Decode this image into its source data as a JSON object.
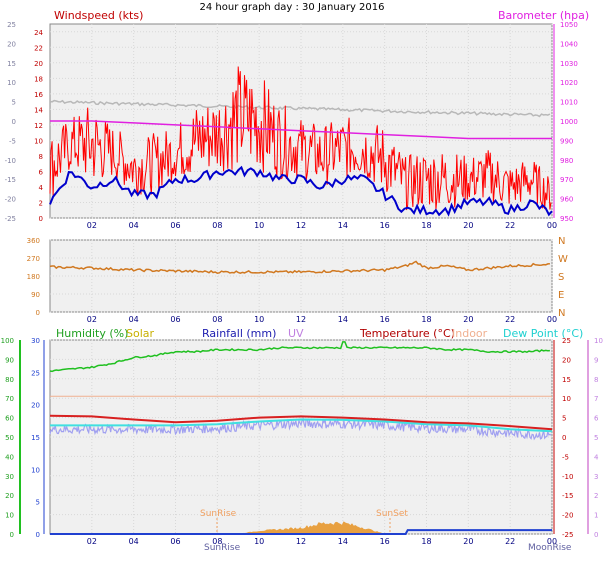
{
  "title": "24 hour graph day : 30 January 2016",
  "colors": {
    "windspeed": "#ff0000",
    "windavg": "#0000cc",
    "gust_grey": "#b8b8b8",
    "barometer": "#e020e0",
    "direction": "#d07820",
    "humidity": "#20c020",
    "solar": "#e8a040",
    "rainfall": "#2040d0",
    "temperature": "#d82020",
    "indoor": "#f0b090",
    "dewpoint": "#40e0e0",
    "uv_band": "#a0a0f0"
  },
  "chart_data": [
    {
      "type": "line",
      "name": "wind-barometer",
      "labels": {
        "windspeed": "Windspeed (kts)",
        "barometer": "Barometer (hpa)"
      },
      "x_ticks": [
        "02",
        "04",
        "06",
        "08",
        "10",
        "12",
        "14",
        "16",
        "18",
        "20",
        "22",
        "00"
      ],
      "y_left_ticks": [
        "0",
        "2",
        "4",
        "6",
        "8",
        "10",
        "12",
        "14",
        "16",
        "18",
        "20",
        "22",
        "24"
      ],
      "y_left2_ticks": [
        "-25",
        "-20",
        "-15",
        "-10",
        "-5",
        "0",
        "5",
        "10",
        "15",
        "20",
        "25"
      ],
      "y_right_ticks": [
        "950",
        "960",
        "970",
        "980",
        "990",
        "1000",
        "1010",
        "1020",
        "1030",
        "1040",
        "1050"
      ],
      "ylim_left": [
        0,
        25
      ],
      "ylim_right": [
        950,
        1050
      ],
      "series": [
        {
          "key": "wind_max",
          "x": [
            0,
            1,
            2,
            3,
            4,
            5,
            6,
            7,
            8,
            9,
            10,
            11,
            12,
            13,
            14,
            15,
            16,
            17,
            18,
            19,
            20,
            21,
            22,
            23,
            24
          ],
          "values": [
            11,
            13,
            15,
            12,
            10,
            11,
            12,
            15,
            16,
            20,
            19,
            15,
            13,
            12,
            13,
            13,
            12,
            8,
            9,
            9,
            8,
            9,
            7,
            8,
            5
          ]
        },
        {
          "key": "wind_avg",
          "x": [
            0,
            1,
            2,
            3,
            4,
            5,
            6,
            7,
            8,
            9,
            10,
            11,
            12,
            13,
            14,
            15,
            16,
            17,
            18,
            19,
            20,
            21,
            22,
            23,
            24
          ],
          "values": [
            2,
            6,
            4,
            5,
            3,
            3,
            5,
            5,
            6,
            6,
            6,
            5,
            5,
            4,
            5,
            5,
            3,
            1,
            1,
            1,
            2,
            2,
            1,
            2,
            0.5
          ]
        },
        {
          "key": "barometer",
          "x": [
            0,
            2,
            4,
            6,
            8,
            10,
            12,
            14,
            16,
            18,
            20,
            22,
            24
          ],
          "values": [
            1000,
            1000,
            999,
            998,
            997,
            996,
            995,
            994,
            993,
            992,
            991,
            991,
            991
          ]
        }
      ]
    },
    {
      "type": "line",
      "name": "wind-direction",
      "x_ticks": [
        "02",
        "04",
        "06",
        "08",
        "10",
        "12",
        "14",
        "16",
        "18",
        "20",
        "22",
        "00"
      ],
      "y_ticks": [
        "0",
        "90",
        "180",
        "270",
        "360"
      ],
      "y_dir_labels": [
        "N",
        "E",
        "S",
        "W",
        "N"
      ],
      "ylim": [
        0,
        360
      ],
      "series": [
        {
          "key": "direction",
          "x": [
            0,
            2,
            4,
            6,
            8,
            10,
            12,
            14,
            16,
            17,
            17.5,
            18,
            19,
            20,
            21,
            22,
            23,
            24
          ],
          "values": [
            225,
            220,
            210,
            205,
            200,
            200,
            200,
            205,
            210,
            230,
            250,
            220,
            230,
            210,
            220,
            230,
            235,
            240
          ]
        }
      ]
    },
    {
      "type": "line",
      "name": "temp-humidity",
      "labels": {
        "humidity": "Humidity (%)",
        "solar": "Solar",
        "rainfall": "Rainfall (mm)",
        "uv": "UV",
        "temperature": "Temperature (°C)",
        "indoor": "Indoor",
        "dewpoint": "Dew Point (°C)",
        "sunrise": "SunRise",
        "sunset": "SunSet",
        "moonrise": "MoonRise"
      },
      "x_ticks": [
        "02",
        "04",
        "06",
        "08",
        "10",
        "12",
        "14",
        "16",
        "18",
        "20",
        "22",
        "00"
      ],
      "y_humidity_ticks": [
        "0",
        "10",
        "20",
        "30",
        "40",
        "50",
        "60",
        "70",
        "80",
        "90",
        "100"
      ],
      "y_rain_ticks": [
        "0",
        "5",
        "10",
        "15",
        "20",
        "25",
        "30"
      ],
      "y_temp_ticks": [
        "-25",
        "-20",
        "-15",
        "-10",
        "-5",
        "0",
        "5",
        "10",
        "15",
        "20",
        "25"
      ],
      "y_uv_ticks": [
        "0",
        "1",
        "2",
        "3",
        "4",
        "5",
        "6",
        "7",
        "8",
        "9",
        "10"
      ],
      "ylim_humidity": [
        0,
        100
      ],
      "ylim_temp": [
        -25,
        25
      ],
      "series": [
        {
          "key": "humidity",
          "x": [
            0,
            1,
            2,
            3,
            4,
            5,
            6,
            7,
            8,
            9,
            10,
            11,
            12,
            13,
            14,
            15,
            16,
            17,
            18,
            19,
            20,
            21,
            22,
            23,
            24
          ],
          "values": [
            84,
            85,
            86,
            88,
            91,
            92,
            94,
            94,
            95,
            95,
            95,
            96,
            96,
            96,
            96,
            96,
            96,
            96,
            96,
            95,
            95,
            94,
            94,
            94,
            95
          ]
        },
        {
          "key": "temperature",
          "x": [
            0,
            2,
            4,
            6,
            8,
            10,
            12,
            14,
            16,
            18,
            20,
            22,
            24
          ],
          "values": [
            5.5,
            5.3,
            4.5,
            3.8,
            4.2,
            5,
            5.3,
            5,
            4.5,
            3.8,
            3.5,
            2.8,
            2
          ]
        },
        {
          "key": "dewpoint",
          "x": [
            0,
            2,
            4,
            6,
            8,
            10,
            12,
            14,
            16,
            18,
            20,
            22,
            24
          ],
          "values": [
            3,
            3,
            3,
            3,
            3.3,
            4,
            4.5,
            4.4,
            4,
            3.3,
            3,
            2,
            1.5
          ]
        },
        {
          "key": "indoor",
          "x": [
            0,
            24
          ],
          "values": [
            10.5,
            10.5
          ]
        },
        {
          "key": "solar",
          "x": [
            9,
            10,
            11,
            12,
            13,
            14,
            15,
            16
          ],
          "values": [
            0,
            1,
            1.5,
            2,
            3.5,
            3.7,
            2,
            0
          ]
        },
        {
          "key": "rainfall",
          "x": [
            0,
            17,
            17.1,
            24
          ],
          "values": [
            0,
            0,
            0.6,
            0.6
          ]
        }
      ]
    }
  ]
}
